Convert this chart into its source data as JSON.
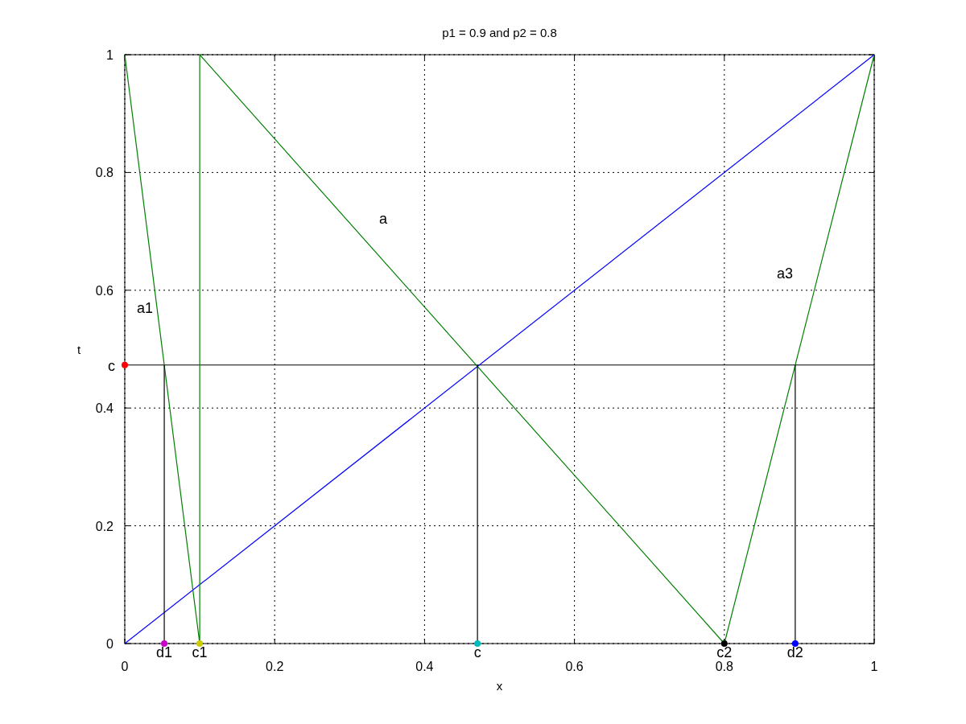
{
  "chart_data": {
    "type": "line",
    "title": "p1 = 0.9 and p2 = 0.8",
    "xlabel": "x",
    "ylabel": "t",
    "xlim": [
      0,
      1
    ],
    "ylim": [
      0,
      1
    ],
    "xticks": [
      0,
      0.2,
      0.4,
      0.6,
      0.8,
      1
    ],
    "yticks": [
      0,
      0.2,
      0.4,
      0.6,
      0.8,
      1
    ],
    "grid": true,
    "line_style": "solid",
    "series": [
      {
        "color": "#0000ff",
        "x": [
          0,
          1
        ],
        "values": [
          0,
          1
        ]
      },
      {
        "color": "#008000",
        "x": [
          0,
          0.1,
          0.1,
          0.8,
          1
        ],
        "values": [
          1,
          0,
          1,
          0,
          1
        ]
      },
      {
        "color": "#000000",
        "x": [
          0.0527,
          0.0527
        ],
        "values": [
          0.473,
          0
        ]
      },
      {
        "color": "#000000",
        "x": [
          0.4706,
          0.4706
        ],
        "values": [
          0.473,
          0
        ]
      },
      {
        "color": "#000000",
        "x": [
          0.8946,
          0.8946
        ],
        "values": [
          0.473,
          0
        ]
      },
      {
        "type": "scatter",
        "marker": "circle",
        "color": "#ff0000",
        "x": [
          0
        ],
        "values": [
          0.473
        ]
      },
      {
        "type": "scatter",
        "marker": "circle",
        "color": "#cc00cc",
        "x": [
          0.0527
        ],
        "values": [
          0
        ]
      },
      {
        "type": "scatter",
        "marker": "circle",
        "color": "#cccc00",
        "x": [
          0.1
        ],
        "values": [
          0
        ]
      },
      {
        "type": "scatter",
        "marker": "circle",
        "color": "#00bbbb",
        "x": [
          0.4706
        ],
        "values": [
          0
        ]
      },
      {
        "type": "scatter",
        "marker": "circle",
        "color": "#000000",
        "x": [
          0.8
        ],
        "values": [
          0
        ]
      },
      {
        "type": "scatter",
        "marker": "circle",
        "color": "#0000ff",
        "x": [
          0.8946
        ],
        "values": [
          0
        ]
      }
    ],
    "ref_lines": [
      {
        "axis": "y",
        "value": 0.473,
        "color": "#000000"
      }
    ],
    "annotations": [
      {
        "text": "c",
        "x": 0,
        "y": 0.473
      },
      {
        "text": "d1",
        "x": 0.0527,
        "y": 0
      },
      {
        "text": "c1",
        "x": 0.1,
        "y": 0
      },
      {
        "text": "c",
        "x": 0.4706,
        "y": 0
      },
      {
        "text": "c2",
        "x": 0.8,
        "y": 0
      },
      {
        "text": "d2",
        "x": 0.8946,
        "y": 0
      },
      "a1",
      "a",
      "a3"
    ]
  }
}
